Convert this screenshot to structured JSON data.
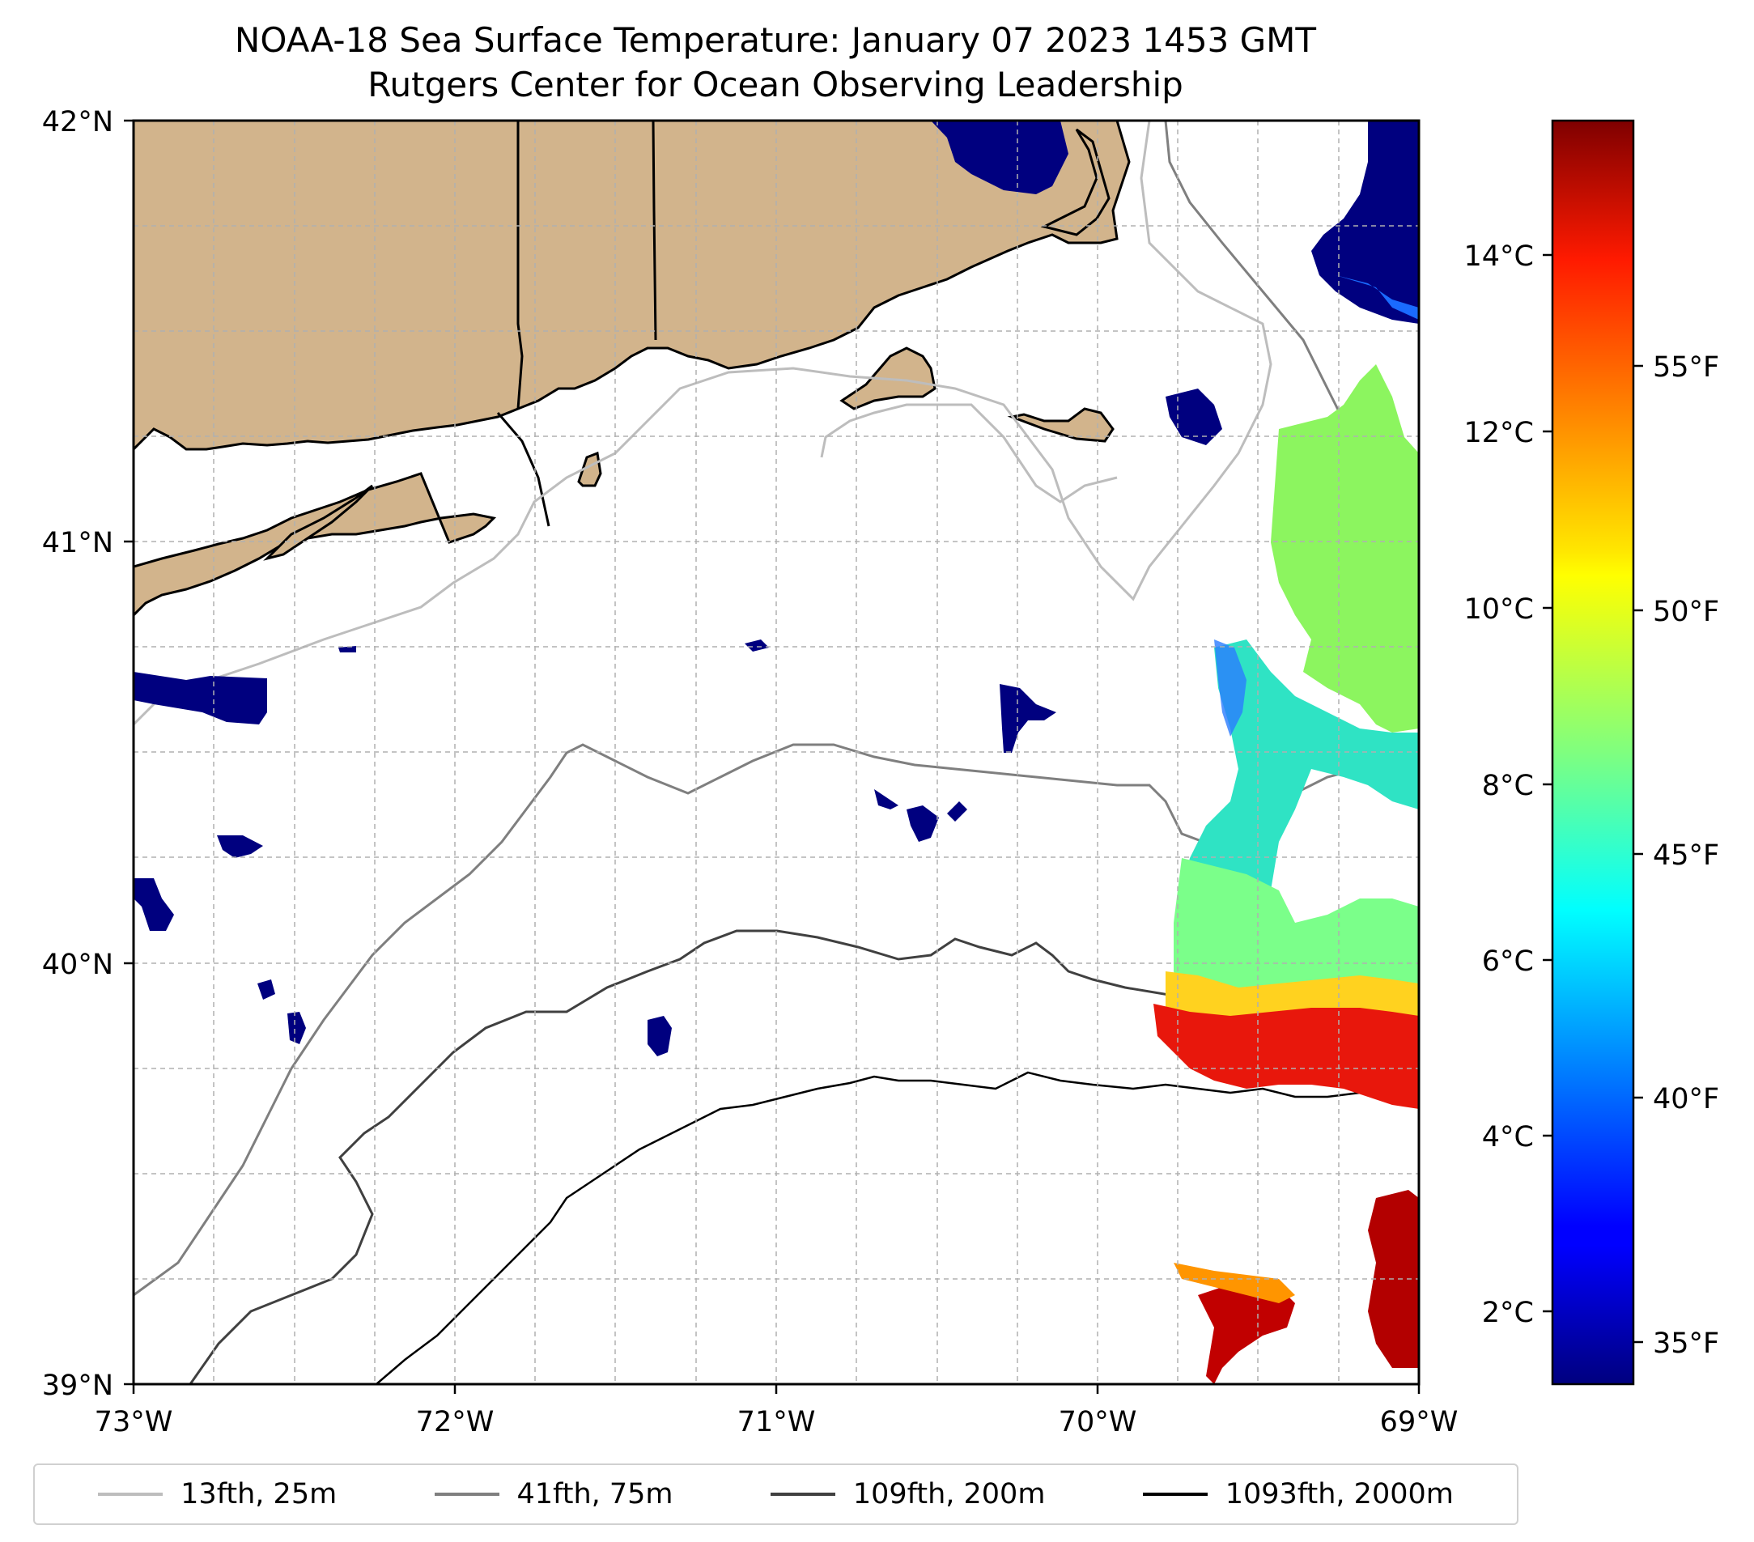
{
  "title": {
    "line1": "NOAA-18 Sea Surface Temperature: January 07 2023 1453 GMT",
    "line2": "Rutgers Center for Ocean Observing Leadership"
  },
  "map": {
    "lon_range": [
      -73,
      -69
    ],
    "lat_range": [
      39,
      42
    ],
    "x_ticks": [
      "73°W",
      "72°W",
      "71°W",
      "70°W",
      "69°W"
    ],
    "y_ticks": [
      "42°N",
      "41°N",
      "40°N",
      "39°N"
    ],
    "gridlines": "dashed, every 0.25°",
    "land_color": "#d2b48c"
  },
  "colorbar": {
    "colormap": "jet",
    "celsius_ticks": [
      "14°C",
      "12°C",
      "10°C",
      "8°C",
      "6°C",
      "4°C",
      "2°C"
    ],
    "fahrenheit_ticks": [
      "55°F",
      "50°F",
      "45°F",
      "40°F",
      "35°F"
    ]
  },
  "legend": [
    {
      "label": "13fth, 25m",
      "color": "#bdbdbd"
    },
    {
      "label": "41fth, 75m",
      "color": "#7f7f7f"
    },
    {
      "label": "109fth, 200m",
      "color": "#404040"
    },
    {
      "label": "1093fth, 2000m",
      "color": "#000000"
    }
  ]
}
